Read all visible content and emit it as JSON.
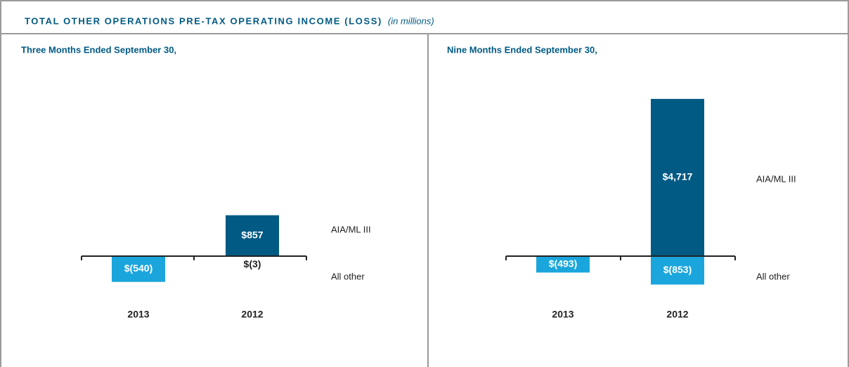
{
  "header": {
    "title": "TOTAL OTHER OPERATIONS PRE-TAX OPERATING INCOME (LOSS)",
    "note": "(in millions)"
  },
  "chart_data": [
    {
      "type": "bar",
      "stacked": true,
      "subtitle": "Three Months Ended September 30,",
      "categories": [
        "2013",
        "2012"
      ],
      "series": [
        {
          "name": "AIA/ML III",
          "color": "#005a84",
          "values": [
            null,
            857
          ],
          "value_labels": [
            null,
            "$857"
          ]
        },
        {
          "name": "All other",
          "color": "#1aa6dc",
          "values": [
            -540,
            -3
          ],
          "value_labels": [
            "$(540)",
            "$(3)"
          ]
        }
      ]
    },
    {
      "type": "bar",
      "stacked": true,
      "subtitle": "Nine Months Ended September 30,",
      "categories": [
        "2013",
        "2012"
      ],
      "series": [
        {
          "name": "AIA/ML III",
          "color": "#005a84",
          "values": [
            null,
            4717
          ],
          "value_labels": [
            null,
            "$4,717"
          ]
        },
        {
          "name": "All other",
          "color": "#1aa6dc",
          "values": [
            -493,
            -853
          ],
          "value_labels": [
            "$(493)",
            "$(853)"
          ]
        }
      ]
    }
  ]
}
